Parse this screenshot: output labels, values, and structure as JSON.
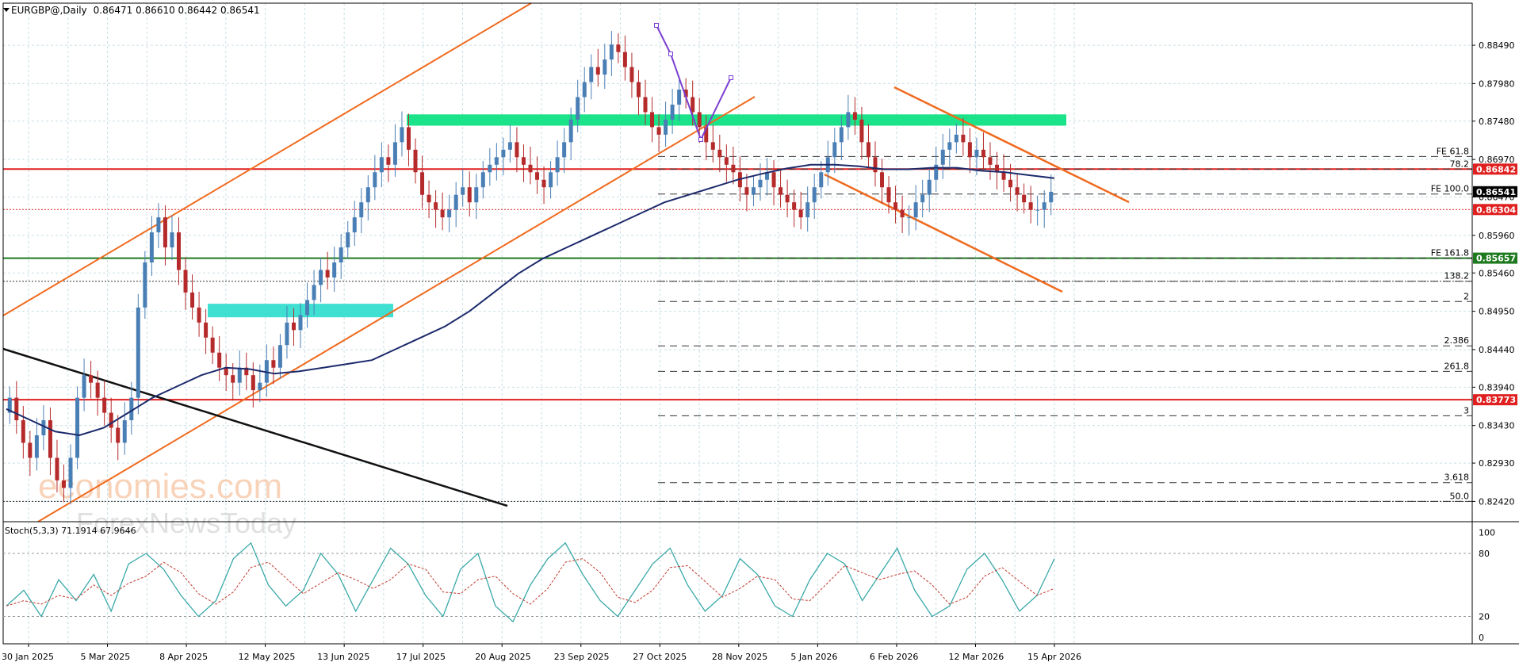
{
  "header": {
    "symbol": "EURGBP@,Daily",
    "ohlc": "0.86471 0.86610 0.86442 0.86541"
  },
  "watermark": {
    "brand": "economies.com",
    "sub": "ForexNewsToday"
  },
  "colors": {
    "bull": "#4a7fb5",
    "bear": "#b52a2a",
    "ma": "#1c2a6b",
    "channel": "#f06a1e",
    "redline": "#e02020",
    "greenline": "#1f7a1f",
    "zone_green": "#1be38a",
    "zone_cyan": "#3fe0d2",
    "grid": "#c9dfe6",
    "stoch_main": "#3aa8a8",
    "stoch_signal": "#c0392b",
    "wave": "#7b3fd1",
    "black_line": "#111111"
  },
  "chart_data": [
    {
      "type": "candlestick",
      "title": "EURGBP@,Daily",
      "x_ticks": [
        "30 Jan 2025",
        "5 Mar 2025",
        "8 Apr 2025",
        "12 May 2025",
        "13 Jun 2025",
        "17 Jul 2025",
        "20 Aug 2025",
        "23 Sep 2025",
        "27 Oct 2025",
        "28 Nov 2025",
        "5 Jan 2026",
        "6 Feb 2026",
        "12 Mar 2026",
        "15 Apr 2026"
      ],
      "y_ticks": [
        "0.88490",
        "0.87980",
        "0.87480",
        "0.86970",
        "0.86470",
        "0.85960",
        "0.85460",
        "0.84950",
        "0.84440",
        "0.83940",
        "0.83430",
        "0.82930",
        "0.82420"
      ],
      "ylim": [
        0.8215,
        0.8905
      ],
      "price_labels": [
        {
          "value": 0.86842,
          "label": "0.86842",
          "color": "#e02020"
        },
        {
          "value": 0.86541,
          "label": "0.86541",
          "color": "#000000"
        },
        {
          "value": 0.86304,
          "label": "0.86304",
          "color": "#e02020"
        },
        {
          "value": 0.85657,
          "label": "0.85657",
          "color": "#1f7a1f"
        },
        {
          "value": 0.83773,
          "label": "0.83773",
          "color": "#e02020"
        }
      ],
      "horizontal_lines": [
        {
          "value": 0.86842,
          "style": "solid",
          "color": "#e02020"
        },
        {
          "value": 0.85657,
          "style": "solid",
          "color": "#1f7a1f"
        },
        {
          "value": 0.83773,
          "style": "solid",
          "color": "#e02020"
        },
        {
          "value": 0.86304,
          "style": "dotted",
          "color": "#e02020"
        },
        {
          "value": 0.8535,
          "style": "dotted",
          "color": "#333333"
        },
        {
          "value": 0.8242,
          "style": "dotted",
          "color": "#333333"
        }
      ],
      "fib_levels": [
        {
          "label": "FE 61.8",
          "value": 0.8701
        },
        {
          "label": "78.2",
          "value": 0.86842
        },
        {
          "label": "FE 100.0",
          "value": 0.8651
        },
        {
          "label": "FE 161.8",
          "value": 0.85657
        },
        {
          "label": "138.2",
          "value": 0.8535
        },
        {
          "label": "2",
          "value": 0.8508
        },
        {
          "label": "2.386",
          "value": 0.8449
        },
        {
          "label": "261.8",
          "value": 0.8415
        },
        {
          "label": "3",
          "value": 0.8356
        },
        {
          "label": "3.618",
          "value": 0.8267
        },
        {
          "label": "50.0",
          "value": 0.8242
        }
      ],
      "zones": [
        {
          "name": "resistance",
          "color": "#1be38a",
          "x_range": [
            "17 Jul 2025",
            "after 15 Apr 2026"
          ],
          "y_range": [
            0.8742,
            0.8757
          ]
        },
        {
          "name": "support",
          "color": "#3fe0d2",
          "x_range": [
            "early May 2025",
            "early Jul 2025"
          ],
          "y_range": [
            0.8487,
            0.8505
          ]
        }
      ],
      "series": [
        {
          "name": "close",
          "values": [
            0.838,
            0.835,
            0.832,
            0.83,
            0.833,
            0.835,
            0.83,
            0.827,
            0.826,
            0.83,
            0.838,
            0.841,
            0.84,
            0.838,
            0.836,
            0.834,
            0.832,
            0.835,
            0.838,
            0.85,
            0.856,
            0.86,
            0.862,
            0.858,
            0.86,
            0.855,
            0.852,
            0.85,
            0.848,
            0.846,
            0.844,
            0.842,
            0.841,
            0.84,
            0.842,
            0.841,
            0.839,
            0.84,
            0.843,
            0.842,
            0.845,
            0.848,
            0.847,
            0.849,
            0.851,
            0.853,
            0.855,
            0.854,
            0.856,
            0.858,
            0.86,
            0.862,
            0.864,
            0.866,
            0.868,
            0.87,
            0.869,
            0.872,
            0.874,
            0.871,
            0.868,
            0.865,
            0.864,
            0.863,
            0.862,
            0.863,
            0.865,
            0.866,
            0.864,
            0.866,
            0.868,
            0.869,
            0.87,
            0.871,
            0.872,
            0.87,
            0.869,
            0.868,
            0.867,
            0.866,
            0.868,
            0.87,
            0.872,
            0.875,
            0.878,
            0.88,
            0.882,
            0.881,
            0.883,
            0.885,
            0.884,
            0.882,
            0.88,
            0.878,
            0.876,
            0.874,
            0.873,
            0.875,
            0.877,
            0.879,
            0.878,
            0.876,
            0.874,
            0.872,
            0.871,
            0.87,
            0.869,
            0.868,
            0.866,
            0.865,
            0.866,
            0.867,
            0.868,
            0.866,
            0.865,
            0.864,
            0.863,
            0.862,
            0.864,
            0.866,
            0.868,
            0.87,
            0.872,
            0.874,
            0.876,
            0.875,
            0.872,
            0.87,
            0.868,
            0.866,
            0.864,
            0.863,
            0.862,
            0.862,
            0.864,
            0.865,
            0.867,
            0.869,
            0.871,
            0.872,
            0.873,
            0.872,
            0.87,
            0.871,
            0.87,
            0.869,
            0.868,
            0.867,
            0.866,
            0.865,
            0.864,
            0.863,
            0.863,
            0.864,
            0.8654
          ]
        },
        {
          "name": "MA",
          "values": [
            0.8365,
            0.835,
            0.8335,
            0.833,
            0.834,
            0.836,
            0.838,
            0.8395,
            0.841,
            0.842,
            0.8418,
            0.8412,
            0.8415,
            0.842,
            0.8425,
            0.843,
            0.8445,
            0.846,
            0.8475,
            0.8495,
            0.852,
            0.8545,
            0.8565,
            0.858,
            0.8595,
            0.861,
            0.8625,
            0.864,
            0.865,
            0.866,
            0.867,
            0.8678,
            0.8685,
            0.869,
            0.869,
            0.8688,
            0.8684,
            0.8684,
            0.8686,
            0.8686,
            0.8682,
            0.868,
            0.8676,
            0.8672
          ]
        },
        {
          "name": "Stoch(5,3,3)",
          "values": [
            30,
            45,
            20,
            55,
            35,
            60,
            25,
            70,
            80,
            65,
            40,
            20,
            35,
            75,
            90,
            50,
            30,
            45,
            80,
            60,
            25,
            55,
            85,
            70,
            40,
            20,
            65,
            80,
            30,
            15,
            50,
            75,
            90,
            60,
            35,
            20,
            45,
            70,
            85,
            50,
            25,
            40,
            75,
            60,
            30,
            20,
            55,
            80,
            70,
            35,
            60,
            85,
            45,
            20,
            30,
            65,
            80,
            55,
            25,
            40,
            75
          ]
        }
      ]
    }
  ],
  "stoch": {
    "label": "Stoch(5,3,3) 71.1914 67.9646",
    "ticks": [
      "100",
      "80",
      "20",
      "0"
    ]
  }
}
